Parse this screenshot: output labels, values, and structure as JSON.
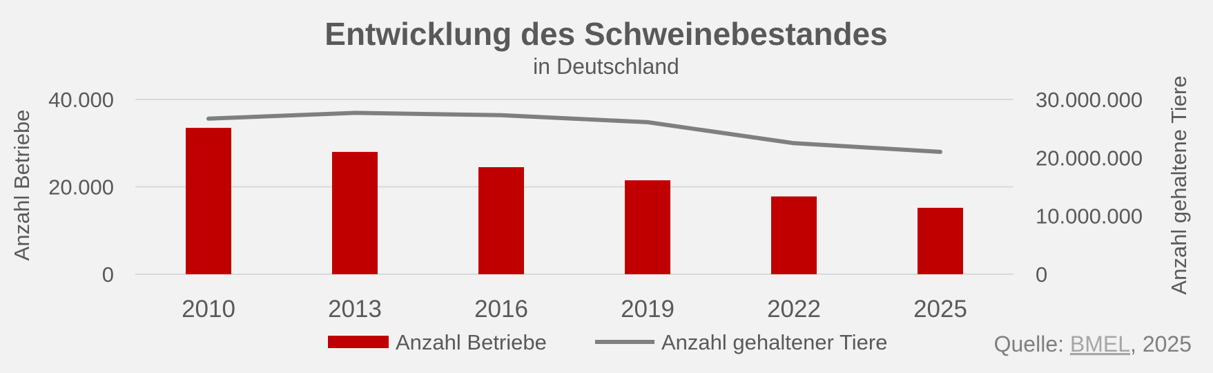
{
  "chart_data": {
    "type": "bar",
    "title": "Entwicklung des Schweinebestandes",
    "subtitle": "in Deutschland",
    "categories": [
      "2010",
      "2013",
      "2016",
      "2019",
      "2022",
      "2025"
    ],
    "series": [
      {
        "name": "Anzahl Betriebe",
        "type": "bar",
        "axis": "left",
        "color": "#c00000",
        "values": [
          33500,
          28000,
          24500,
          21500,
          17800,
          15200
        ]
      },
      {
        "name": "Anzahl gehaltener Tiere",
        "type": "line",
        "axis": "right",
        "color": "#7f7f7f",
        "values": [
          26700000,
          27700000,
          27300000,
          26100000,
          22500000,
          21000000
        ]
      }
    ],
    "ylabel": "Anzahl Betriebe",
    "ylim": [
      0,
      40000
    ],
    "yticks": [
      "0",
      "20.000",
      "40.000"
    ],
    "y2label": "Anzahl gehaltene Tiere",
    "y2lim": [
      0,
      30000000
    ],
    "y2ticks": [
      "0",
      "10.000.000",
      "20.000.000",
      "30.000.000"
    ],
    "grid": true,
    "legend_position": "bottom"
  },
  "source": {
    "prefix": "Quelle: ",
    "link_text": "BMEL",
    "suffix": ", 2025"
  }
}
